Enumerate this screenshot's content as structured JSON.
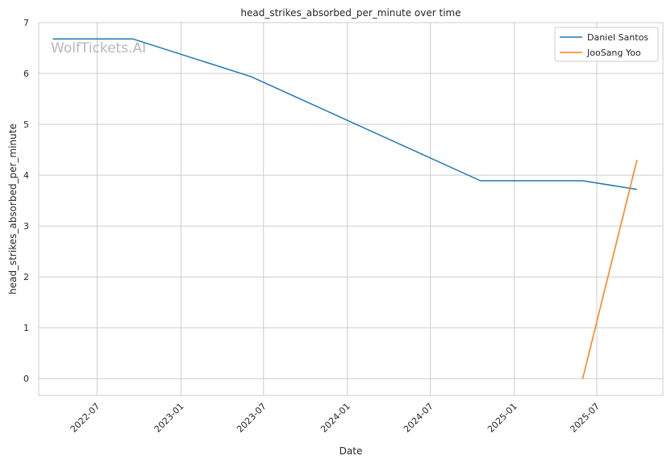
{
  "chart_data": {
    "type": "line",
    "title": "head_strikes_absorbed_per_minute over time",
    "xlabel": "Date",
    "ylabel": "head_strikes_absorbed_per_minute",
    "watermark": "WolfTickets.AI",
    "x_ticks": [
      "2022-07",
      "2023-01",
      "2023-07",
      "2024-01",
      "2024-07",
      "2025-01",
      "2025-07"
    ],
    "y_ticks": [
      0,
      1,
      2,
      3,
      4,
      5,
      6,
      7
    ],
    "xlim": [
      "2022-02-23",
      "2025-11-23"
    ],
    "ylim": [
      -0.33,
      7
    ],
    "grid": true,
    "legend_position": "top-right",
    "series": [
      {
        "name": "Daniel Santos",
        "color": "#1f77b4",
        "points": [
          {
            "x": "2022-03-26",
            "y": 6.68
          },
          {
            "x": "2022-09-17",
            "y": 6.68
          },
          {
            "x": "2023-06-03",
            "y": 5.94
          },
          {
            "x": "2024-10-19",
            "y": 3.89
          },
          {
            "x": "2025-05-31",
            "y": 3.89
          },
          {
            "x": "2025-09-27",
            "y": 3.72
          }
        ]
      },
      {
        "name": "JooSang Yoo",
        "color": "#ff7f0e",
        "points": [
          {
            "x": "2025-05-31",
            "y": 0.0
          },
          {
            "x": "2025-09-27",
            "y": 4.3
          }
        ]
      }
    ]
  }
}
